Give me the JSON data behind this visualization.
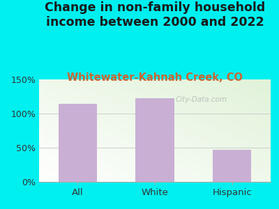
{
  "title": "Change in non-family household\nincome between 2000 and 2022",
  "subtitle": "Whitewater-Kahnah Creek, CO",
  "categories": [
    "All",
    "White",
    "Hispanic"
  ],
  "values": [
    114,
    122,
    47
  ],
  "bar_color": "#c9afd4",
  "title_fontsize": 12.5,
  "subtitle_fontsize": 10.5,
  "subtitle_color": "#cc6633",
  "title_color": "#1a1a1a",
  "background_outer": "#00f0f0",
  "ylim": [
    0,
    150
  ],
  "yticks": [
    0,
    50,
    100,
    150
  ],
  "ytick_labels": [
    "0%",
    "50%",
    "100%",
    "150%"
  ],
  "watermark": "City-Data.com",
  "grid_color": "#cccccc",
  "axis_color": "#aaaaaa"
}
